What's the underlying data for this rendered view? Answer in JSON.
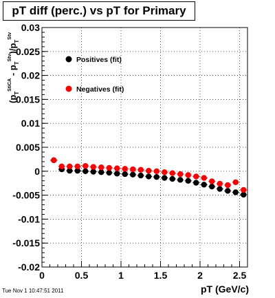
{
  "chart_data": {
    "type": "scatter",
    "title": "pT diff (perc.) vs pT for Primary",
    "xlabel": "pT (GeV/c)",
    "ylabel_main": "(p",
    "ylabel_parts": [
      "T",
      "StiCA",
      " - p",
      "T",
      "Stv",
      ")/p",
      "T",
      "Stv"
    ],
    "xlim": [
      0,
      2.6
    ],
    "ylim": [
      -0.02,
      0.03
    ],
    "x_ticks": [
      0,
      0.5,
      1,
      1.5,
      2,
      2.5
    ],
    "x_tick_labels": [
      "0",
      "0.5",
      "1",
      "1.5",
      "2",
      "2.5"
    ],
    "y_ticks": [
      -0.02,
      -0.015,
      -0.01,
      -0.005,
      0,
      0.005,
      0.01,
      0.015,
      0.02,
      0.025,
      0.03
    ],
    "y_tick_labels": [
      "-0.02",
      "-0.015",
      "-0.01",
      "-0.005",
      "0",
      "0.005",
      "0.01",
      "0.015",
      "0.02",
      "0.025",
      "0.03"
    ],
    "grid": true,
    "legend_position": "top-left",
    "series": [
      {
        "name": "Positives (fit)",
        "color": "#000000",
        "x": [
          0.15,
          0.25,
          0.35,
          0.45,
          0.55,
          0.65,
          0.75,
          0.85,
          0.95,
          1.05,
          1.15,
          1.25,
          1.35,
          1.45,
          1.55,
          1.65,
          1.75,
          1.85,
          1.95,
          2.05,
          2.15,
          2.25,
          2.35,
          2.45,
          2.55
        ],
        "y": [
          0.0023,
          0.0004,
          0.0001,
          0.0001,
          0.0,
          -0.0001,
          -0.0002,
          -0.0003,
          -0.0005,
          -0.0006,
          -0.0007,
          -0.0009,
          -0.0011,
          -0.0012,
          -0.0014,
          -0.0016,
          -0.0018,
          -0.002,
          -0.0024,
          -0.0028,
          -0.0032,
          -0.0037,
          -0.0041,
          -0.0044,
          -0.0049
        ]
      },
      {
        "name": "Negatives (fit)",
        "color": "#ff0000",
        "x": [
          0.15,
          0.25,
          0.35,
          0.45,
          0.55,
          0.65,
          0.75,
          0.85,
          0.95,
          1.05,
          1.15,
          1.25,
          1.35,
          1.45,
          1.55,
          1.65,
          1.75,
          1.85,
          1.95,
          2.05,
          2.15,
          2.25,
          2.35,
          2.45,
          2.55
        ],
        "y": [
          0.0023,
          0.001,
          0.001,
          0.001,
          0.0011,
          0.0009,
          0.0008,
          0.0007,
          0.0006,
          0.0005,
          0.0004,
          0.0003,
          0.0001,
          0.0,
          -0.0002,
          -0.0004,
          -0.0006,
          -0.0008,
          -0.0011,
          -0.0014,
          -0.0021,
          -0.0026,
          -0.0029,
          -0.0023,
          -0.0039
        ]
      }
    ]
  },
  "footer": {
    "timestamp": "Tue Nov  1 10:47:51 2011"
  }
}
